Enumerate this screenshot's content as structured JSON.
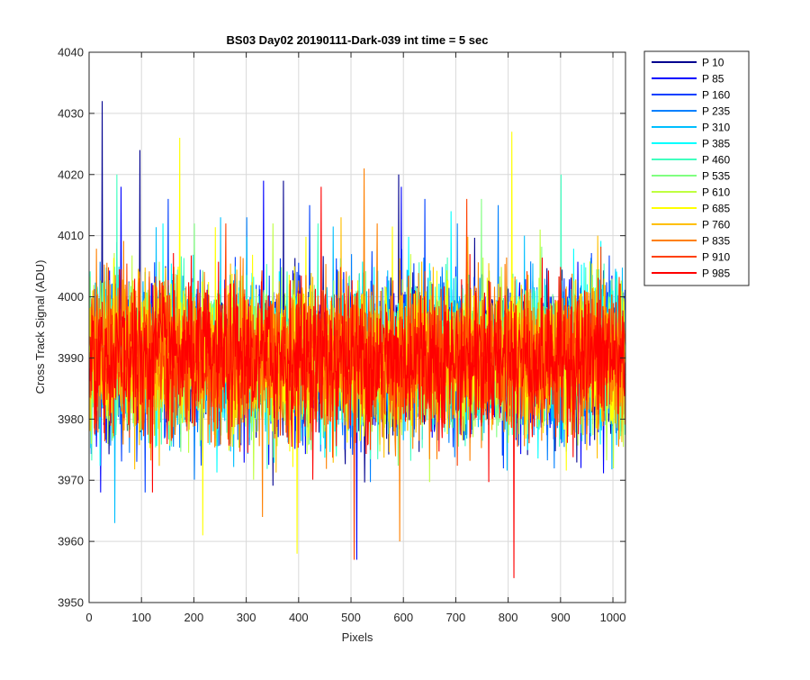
{
  "chart_data": {
    "type": "line",
    "title": "BS03 Day02 20190111-Dark-039 int time = 5 sec",
    "xlabel": "Pixels",
    "ylabel": "Cross Track Signal (ADU)",
    "xlim": [
      0,
      1024
    ],
    "ylim": [
      3950,
      4040
    ],
    "xticks": [
      0,
      100,
      200,
      300,
      400,
      500,
      600,
      700,
      800,
      900,
      1000
    ],
    "yticks": [
      3950,
      3960,
      3970,
      3980,
      3990,
      4000,
      4010,
      4020,
      4030,
      4040
    ],
    "grid": true,
    "legend_position": "outside-top-right",
    "noise_mean": 3990,
    "noise_sigma": 6,
    "series": [
      {
        "name": "P 10",
        "color": "#00008f",
        "peaks": [
          [
            24,
            4032
          ],
          [
            96,
            4024
          ],
          [
            370,
            4019
          ],
          [
            590,
            4020
          ]
        ]
      },
      {
        "name": "P 85",
        "color": "#0000ff",
        "peaks": [
          [
            60,
            4018
          ],
          [
            332,
            4019
          ],
          [
            510,
            3957
          ],
          [
            595,
            4018
          ]
        ]
      },
      {
        "name": "P 160",
        "color": "#0040ff",
        "peaks": [
          [
            150,
            4016
          ],
          [
            420,
            4015
          ],
          [
            640,
            4016
          ]
        ]
      },
      {
        "name": "P 235",
        "color": "#0080ff",
        "peaks": [
          [
            300,
            4013
          ],
          [
            702,
            4012
          ],
          [
            780,
            4015
          ]
        ]
      },
      {
        "name": "P 310",
        "color": "#00bfff",
        "peaks": [
          [
            48,
            3963
          ],
          [
            250,
            4013
          ],
          [
            830,
            4010
          ]
        ]
      },
      {
        "name": "P 385",
        "color": "#00ffff",
        "peaks": [
          [
            140,
            4012
          ],
          [
            690,
            4014
          ]
        ]
      },
      {
        "name": "P 460",
        "color": "#40ffbf",
        "peaks": [
          [
            52,
            4020
          ],
          [
            900,
            4020
          ]
        ]
      },
      {
        "name": "P 535",
        "color": "#80ff80",
        "peaks": [
          [
            200,
            4012
          ],
          [
            748,
            4016
          ]
        ]
      },
      {
        "name": "P 610",
        "color": "#bfff40",
        "peaks": [
          [
            350,
            4012
          ],
          [
            860,
            4011
          ]
        ]
      },
      {
        "name": "P 685",
        "color": "#ffff00",
        "peaks": [
          [
            172,
            4026
          ],
          [
            396,
            3958
          ],
          [
            806,
            4027
          ],
          [
            216,
            3961
          ]
        ]
      },
      {
        "name": "P 760",
        "color": "#ffbf00",
        "peaks": [
          [
            480,
            4013
          ],
          [
            970,
            4010
          ]
        ]
      },
      {
        "name": "P 835",
        "color": "#ff8000",
        "peaks": [
          [
            524,
            4021
          ],
          [
            592,
            3960
          ],
          [
            330,
            3964
          ]
        ]
      },
      {
        "name": "P 910",
        "color": "#ff4000",
        "peaks": [
          [
            260,
            4012
          ],
          [
            720,
            4016
          ],
          [
            505,
            3957
          ]
        ]
      },
      {
        "name": "P 985",
        "color": "#ff0000",
        "peaks": [
          [
            442,
            4018
          ],
          [
            810,
            3954
          ],
          [
            120,
            3968
          ]
        ]
      }
    ]
  }
}
